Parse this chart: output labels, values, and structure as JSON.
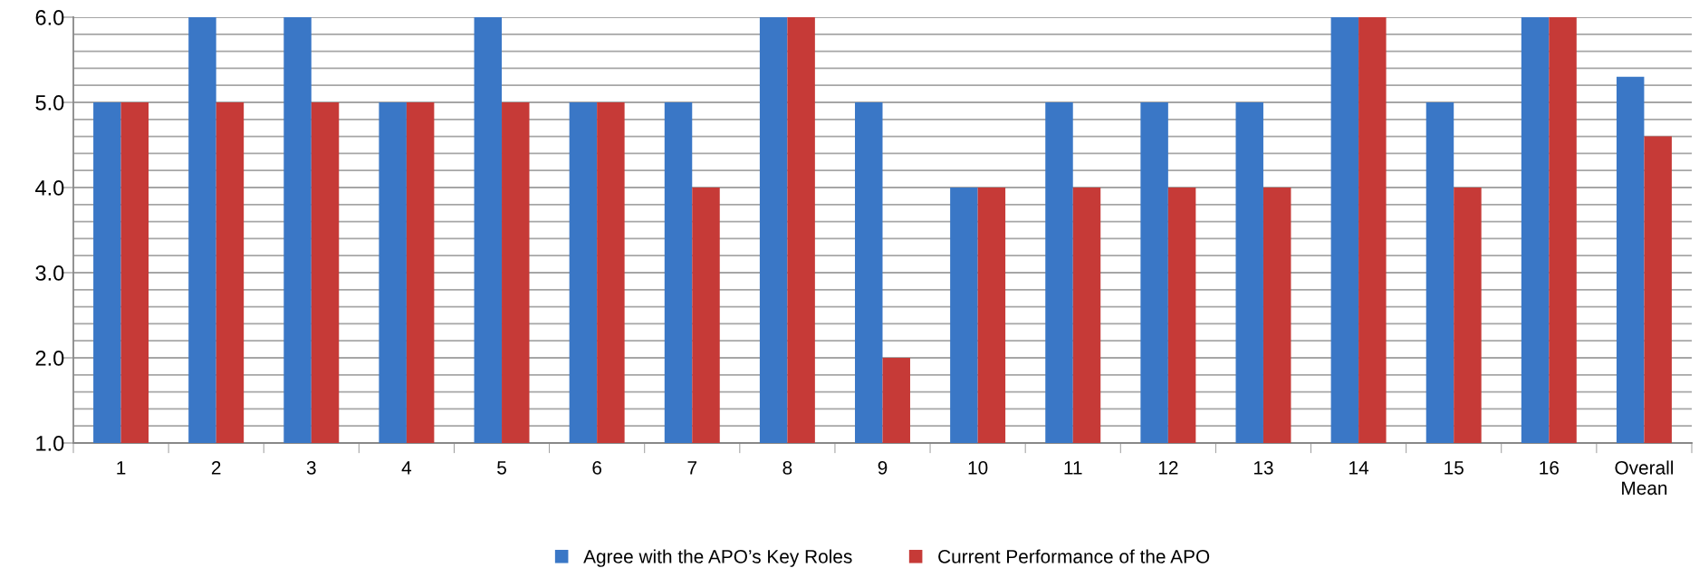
{
  "chart_data": {
    "type": "bar",
    "categories": [
      "1",
      "2",
      "3",
      "4",
      "5",
      "6",
      "7",
      "8",
      "9",
      "10",
      "11",
      "12",
      "13",
      "14",
      "15",
      "16",
      "Overall\nMean"
    ],
    "series": [
      {
        "name": "Agree with the APO’s Key Roles",
        "color": "#3a77c6",
        "values": [
          5,
          6,
          6,
          5,
          6,
          5,
          5,
          6,
          5,
          4,
          5,
          5,
          5,
          6,
          5,
          6,
          5.3
        ]
      },
      {
        "name": "Current Performance of the APO",
        "color": "#c63a37",
        "values": [
          5,
          5,
          5,
          5,
          5,
          5,
          4,
          6,
          2,
          4,
          4,
          4,
          4,
          6,
          4,
          6,
          4.6
        ]
      }
    ],
    "ylim": [
      1,
      6
    ],
    "yticks": [
      {
        "value": 1,
        "label": "1.0"
      },
      {
        "value": 1.2,
        "label": null
      },
      {
        "value": 1.4,
        "label": null
      },
      {
        "value": 1.6,
        "label": null
      },
      {
        "value": 1.8,
        "label": null
      },
      {
        "value": 2,
        "label": "2.0"
      },
      {
        "value": 2.2,
        "label": null
      },
      {
        "value": 2.4,
        "label": null
      },
      {
        "value": 2.6,
        "label": null
      },
      {
        "value": 2.8,
        "label": null
      },
      {
        "value": 3,
        "label": "3.0"
      },
      {
        "value": 3.2,
        "label": null
      },
      {
        "value": 3.4,
        "label": null
      },
      {
        "value": 3.6,
        "label": null
      },
      {
        "value": 3.8,
        "label": null
      },
      {
        "value": 4,
        "label": "4.0"
      },
      {
        "value": 4.2,
        "label": null
      },
      {
        "value": 4.4,
        "label": null
      },
      {
        "value": 4.6,
        "label": null
      },
      {
        "value": 4.8,
        "label": null
      },
      {
        "value": 5,
        "label": "5.0"
      },
      {
        "value": 5.2,
        "label": null
      },
      {
        "value": 5.4,
        "label": null
      },
      {
        "value": 5.6,
        "label": null
      },
      {
        "value": 5.8,
        "label": null
      },
      {
        "value": 6,
        "label": "6.0"
      }
    ],
    "grid": "y",
    "legend": "bottom"
  }
}
